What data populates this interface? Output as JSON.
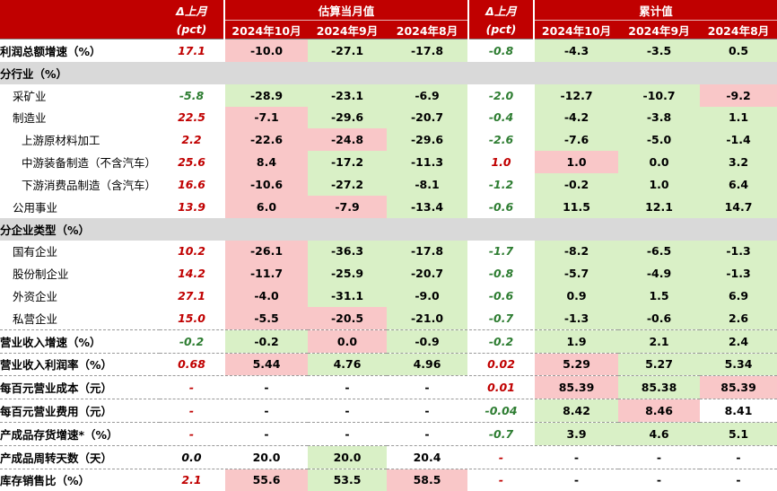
{
  "header": {
    "delta1": "Δ上月",
    "delta1_unit": "(pct)",
    "group1": "估算当月值",
    "group2": "累计值",
    "delta2": "Δ上月",
    "delta2_unit": "(pct)",
    "months1": [
      "2024年10月",
      "2024年9月",
      "2024年8月"
    ],
    "months2": [
      "2024年10月",
      "2024年9月",
      "2024年8月"
    ]
  },
  "rows": [
    {
      "type": "data",
      "label": "利润总额增速（%）",
      "bold": true,
      "indent": 0,
      "d1": "17.1",
      "d1s": "pos",
      "m": [
        "-10.0",
        "-27.1",
        "-17.8"
      ],
      "mc": [
        "r",
        "g",
        "g"
      ],
      "d2": "-0.8",
      "d2s": "neg",
      "c": [
        "-4.3",
        "-3.5",
        "0.5"
      ],
      "cc": [
        "g",
        "g",
        "g"
      ]
    },
    {
      "type": "section",
      "label": "分行业（%）"
    },
    {
      "type": "data",
      "label": "采矿业",
      "bold": false,
      "indent": 1,
      "d1": "-5.8",
      "d1s": "neg",
      "m": [
        "-28.9",
        "-23.1",
        "-6.9"
      ],
      "mc": [
        "g",
        "g",
        "g"
      ],
      "d2": "-2.0",
      "d2s": "neg",
      "c": [
        "-12.7",
        "-10.7",
        "-9.2"
      ],
      "cc": [
        "g",
        "g",
        "r"
      ]
    },
    {
      "type": "data",
      "label": "制造业",
      "bold": false,
      "indent": 1,
      "d1": "22.5",
      "d1s": "pos",
      "m": [
        "-7.1",
        "-29.6",
        "-20.7"
      ],
      "mc": [
        "r",
        "g",
        "g"
      ],
      "d2": "-0.4",
      "d2s": "neg",
      "c": [
        "-4.2",
        "-3.8",
        "1.1"
      ],
      "cc": [
        "g",
        "g",
        "g"
      ]
    },
    {
      "type": "data",
      "label": "上游原材料加工",
      "bold": false,
      "indent": 2,
      "d1": "2.2",
      "d1s": "pos",
      "m": [
        "-22.6",
        "-24.8",
        "-29.6"
      ],
      "mc": [
        "r",
        "r",
        "g"
      ],
      "d2": "-2.6",
      "d2s": "neg",
      "c": [
        "-7.6",
        "-5.0",
        "-1.4"
      ],
      "cc": [
        "g",
        "g",
        "g"
      ]
    },
    {
      "type": "data",
      "label": "中游装备制造（不含汽车）",
      "bold": false,
      "indent": 2,
      "d1": "25.6",
      "d1s": "pos",
      "m": [
        "8.4",
        "-17.2",
        "-11.3"
      ],
      "mc": [
        "r",
        "g",
        "g"
      ],
      "d2": "1.0",
      "d2s": "pos",
      "c": [
        "1.0",
        "0.0",
        "3.2"
      ],
      "cc": [
        "r",
        "g",
        "g"
      ]
    },
    {
      "type": "data",
      "label": "下游消费品制造（含汽车）",
      "bold": false,
      "indent": 2,
      "d1": "16.6",
      "d1s": "pos",
      "m": [
        "-10.6",
        "-27.2",
        "-8.1"
      ],
      "mc": [
        "r",
        "g",
        "g"
      ],
      "d2": "-1.2",
      "d2s": "neg",
      "c": [
        "-0.2",
        "1.0",
        "6.4"
      ],
      "cc": [
        "g",
        "g",
        "g"
      ]
    },
    {
      "type": "data",
      "label": "公用事业",
      "bold": false,
      "indent": 1,
      "d1": "13.9",
      "d1s": "pos",
      "m": [
        "6.0",
        "-7.9",
        "-13.4"
      ],
      "mc": [
        "r",
        "r",
        "g"
      ],
      "d2": "-0.6",
      "d2s": "neg",
      "c": [
        "11.5",
        "12.1",
        "14.7"
      ],
      "cc": [
        "g",
        "g",
        "g"
      ]
    },
    {
      "type": "section",
      "label": "分企业类型（%）"
    },
    {
      "type": "data",
      "label": "国有企业",
      "bold": false,
      "indent": 1,
      "d1": "10.2",
      "d1s": "pos",
      "m": [
        "-26.1",
        "-36.3",
        "-17.8"
      ],
      "mc": [
        "r",
        "g",
        "g"
      ],
      "d2": "-1.7",
      "d2s": "neg",
      "c": [
        "-8.2",
        "-6.5",
        "-1.3"
      ],
      "cc": [
        "g",
        "g",
        "g"
      ]
    },
    {
      "type": "data",
      "label": "股份制企业",
      "bold": false,
      "indent": 1,
      "d1": "14.2",
      "d1s": "pos",
      "m": [
        "-11.7",
        "-25.9",
        "-20.7"
      ],
      "mc": [
        "r",
        "g",
        "g"
      ],
      "d2": "-0.8",
      "d2s": "neg",
      "c": [
        "-5.7",
        "-4.9",
        "-1.3"
      ],
      "cc": [
        "g",
        "g",
        "g"
      ]
    },
    {
      "type": "data",
      "label": "外资企业",
      "bold": false,
      "indent": 1,
      "d1": "27.1",
      "d1s": "pos",
      "m": [
        "-4.0",
        "-31.1",
        "-9.0"
      ],
      "mc": [
        "r",
        "g",
        "g"
      ],
      "d2": "-0.6",
      "d2s": "neg",
      "c": [
        "0.9",
        "1.5",
        "6.9"
      ],
      "cc": [
        "g",
        "g",
        "g"
      ]
    },
    {
      "type": "data",
      "label": "私营企业",
      "bold": false,
      "indent": 1,
      "d1": "15.0",
      "d1s": "pos",
      "m": [
        "-5.5",
        "-20.5",
        "-21.0"
      ],
      "mc": [
        "r",
        "r",
        "g"
      ],
      "d2": "-0.7",
      "d2s": "neg",
      "c": [
        "-1.3",
        "-0.6",
        "2.6"
      ],
      "cc": [
        "g",
        "g",
        "g"
      ]
    },
    {
      "type": "data",
      "label": "营业收入增速（%）",
      "bold": true,
      "indent": 0,
      "sep": true,
      "d1": "-0.2",
      "d1s": "neg",
      "m": [
        "-0.2",
        "0.0",
        "-0.9"
      ],
      "mc": [
        "g",
        "r",
        "g"
      ],
      "d2": "-0.2",
      "d2s": "neg",
      "c": [
        "1.9",
        "2.1",
        "2.4"
      ],
      "cc": [
        "g",
        "g",
        "g"
      ]
    },
    {
      "type": "data",
      "label": "营业收入利润率（%）",
      "bold": true,
      "indent": 0,
      "sep": true,
      "d1": "0.68",
      "d1s": "pos",
      "m": [
        "5.44",
        "4.76",
        "4.96"
      ],
      "mc": [
        "r",
        "g",
        "g"
      ],
      "d2": "0.02",
      "d2s": "pos",
      "c": [
        "5.29",
        "5.27",
        "5.34"
      ],
      "cc": [
        "r",
        "g",
        "g"
      ]
    },
    {
      "type": "data",
      "label": "每百元营业成本（元）",
      "bold": true,
      "indent": 0,
      "sep": true,
      "d1": "-",
      "d1s": "pos",
      "m": [
        "-",
        "-",
        "-"
      ],
      "mc": [
        "",
        "",
        ""
      ],
      "d2": "0.01",
      "d2s": "pos",
      "c": [
        "85.39",
        "85.38",
        "85.39"
      ],
      "cc": [
        "r",
        "g",
        "r"
      ]
    },
    {
      "type": "data",
      "label": "每百元营业费用（元）",
      "bold": true,
      "indent": 0,
      "sep": true,
      "d1": "-",
      "d1s": "pos",
      "m": [
        "-",
        "-",
        "-"
      ],
      "mc": [
        "",
        "",
        ""
      ],
      "d2": "-0.04",
      "d2s": "neg",
      "c": [
        "8.42",
        "8.46",
        "8.41"
      ],
      "cc": [
        "g",
        "r",
        ""
      ]
    },
    {
      "type": "data",
      "label": "产成品存货增速*（%）",
      "bold": true,
      "indent": 0,
      "sep": true,
      "d1": "-",
      "d1s": "pos",
      "m": [
        "-",
        "-",
        "-"
      ],
      "mc": [
        "",
        "",
        ""
      ],
      "d2": "-0.7",
      "d2s": "neg",
      "c": [
        "3.9",
        "4.6",
        "5.1"
      ],
      "cc": [
        "g",
        "g",
        "g"
      ]
    },
    {
      "type": "data",
      "label": "产成品周转天数（天）",
      "bold": true,
      "indent": 0,
      "sep": true,
      "d1": "0.0",
      "d1s": "black",
      "m": [
        "20.0",
        "20.0",
        "20.4"
      ],
      "mc": [
        "",
        "g",
        ""
      ],
      "d2": "-",
      "d2s": "pos",
      "c": [
        "-",
        "-",
        "-"
      ],
      "cc": [
        "",
        "",
        ""
      ]
    },
    {
      "type": "data",
      "label": "库存销售比（%）",
      "bold": true,
      "indent": 0,
      "sep": true,
      "d1": "2.1",
      "d1s": "pos",
      "m": [
        "55.6",
        "53.5",
        "58.5"
      ],
      "mc": [
        "r",
        "g",
        "r"
      ],
      "d2": "-",
      "d2s": "pos",
      "c": [
        "-",
        "-",
        "-"
      ],
      "cc": [
        "",
        "",
        ""
      ]
    }
  ]
}
